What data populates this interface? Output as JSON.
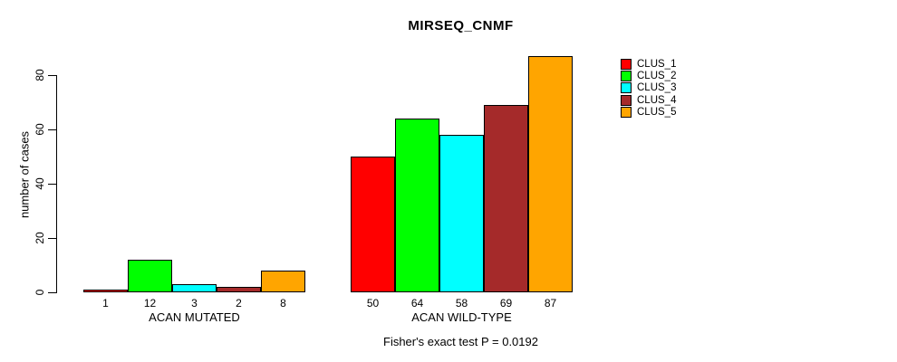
{
  "chart_data": {
    "type": "bar",
    "title": "MIRSEQ_CNMF",
    "xlabel": "",
    "ylabel": "number of cases",
    "ylim": [
      0,
      88
    ],
    "yticks": [
      0,
      20,
      40,
      60,
      80
    ],
    "grid": false,
    "legend_position": "right",
    "bar_value_labels": true,
    "categories": [
      "ACAN MUTATED",
      "ACAN WILD-TYPE"
    ],
    "series": [
      {
        "name": "CLUS_1",
        "color": "#ff0000",
        "values": [
          1,
          50
        ]
      },
      {
        "name": "CLUS_2",
        "color": "#00ff00",
        "values": [
          12,
          64
        ]
      },
      {
        "name": "CLUS_3",
        "color": "#00ffff",
        "values": [
          3,
          58
        ]
      },
      {
        "name": "CLUS_4",
        "color": "#a52a2a",
        "values": [
          2,
          69
        ]
      },
      {
        "name": "CLUS_5",
        "color": "#ffa500",
        "values": [
          8,
          87
        ]
      }
    ],
    "caption": "Fisher's exact test P = 0.0192"
  }
}
